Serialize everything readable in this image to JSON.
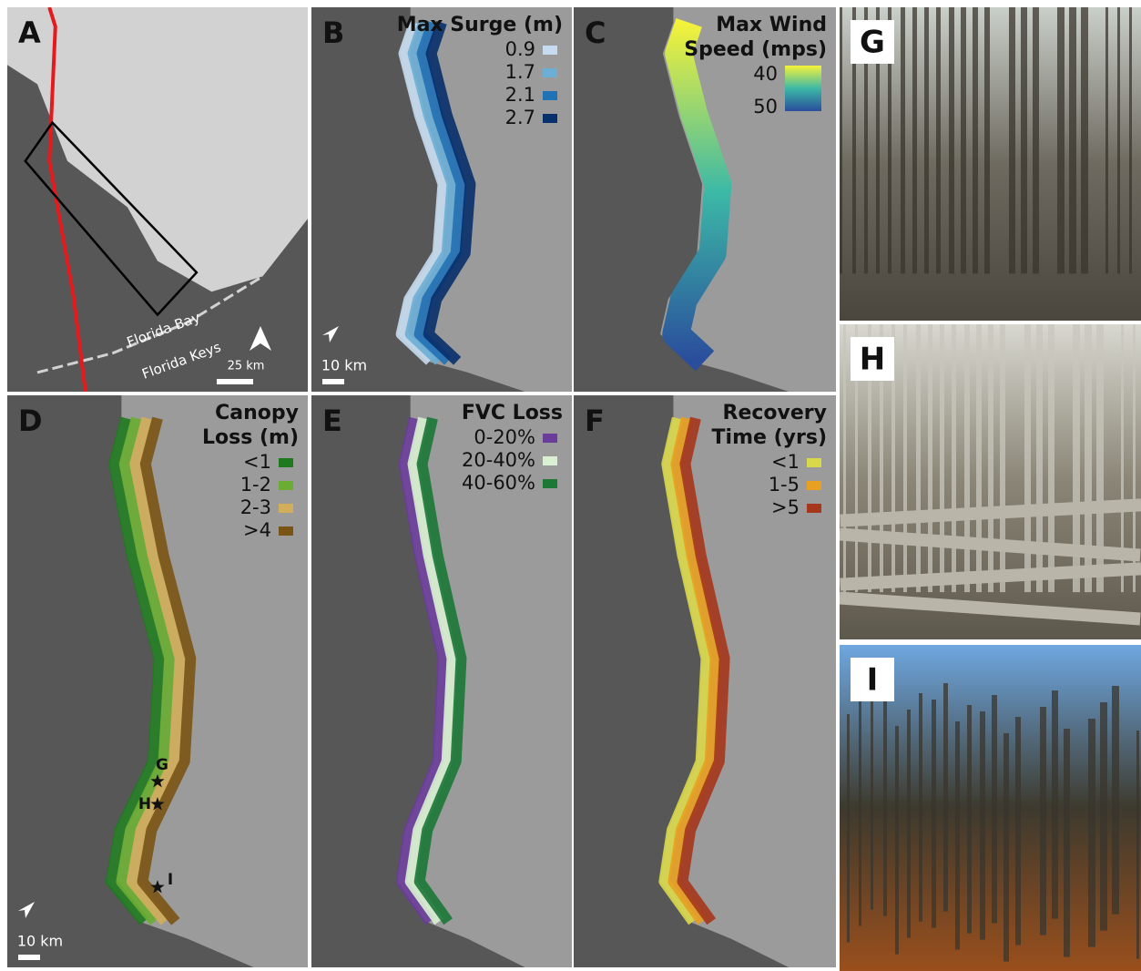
{
  "panels": [
    {
      "label": "A",
      "annotations": [
        "Florida Bay",
        "Florida Keys"
      ],
      "scale_bar": "25 km"
    },
    {
      "label": "B",
      "legend": {
        "title": [
          "Max Surge (m)"
        ],
        "items": [
          {
            "label": "0.9",
            "color": "#c6dbef"
          },
          {
            "label": "1.7",
            "color": "#6baed6"
          },
          {
            "label": "2.1",
            "color": "#2171b5"
          },
          {
            "label": "2.7",
            "color": "#08306b"
          }
        ]
      },
      "scale_bar": "10 km"
    },
    {
      "label": "C",
      "legend": {
        "title": [
          "Max Wind",
          "Speed (mps)"
        ],
        "gradient": [
          "#f5f23a",
          "#3cb9a6",
          "#2a4d9c"
        ],
        "ticks": [
          "40",
          "50"
        ]
      }
    },
    {
      "label": "D",
      "legend": {
        "title": [
          "Canopy",
          "Loss (m)"
        ],
        "items": [
          {
            "label": "<1",
            "color": "#1f7a1f"
          },
          {
            "label": "1-2",
            "color": "#6aad32"
          },
          {
            "label": "2-3",
            "color": "#d2ae5a"
          },
          {
            "label": ">4",
            "color": "#7a5414"
          }
        ]
      },
      "markers": [
        "G",
        "H",
        "I"
      ],
      "scale_bar": "10 km"
    },
    {
      "label": "E",
      "legend": {
        "title": [
          "FVC Loss"
        ],
        "items": [
          {
            "label": "0-20%",
            "color": "#6a3d9a"
          },
          {
            "label": "20-40%",
            "color": "#d9f0d3"
          },
          {
            "label": "40-60%",
            "color": "#1b7837"
          }
        ]
      }
    },
    {
      "label": "F",
      "legend": {
        "title": [
          "Recovery",
          "Time (yrs)"
        ],
        "items": [
          {
            "label": "<1",
            "color": "#d9d84a"
          },
          {
            "label": "1-5",
            "color": "#e8a020"
          },
          {
            "label": ">5",
            "color": "#a6361c"
          }
        ]
      }
    }
  ],
  "photos": [
    {
      "label": "G"
    },
    {
      "label": "H"
    },
    {
      "label": "I"
    }
  ]
}
